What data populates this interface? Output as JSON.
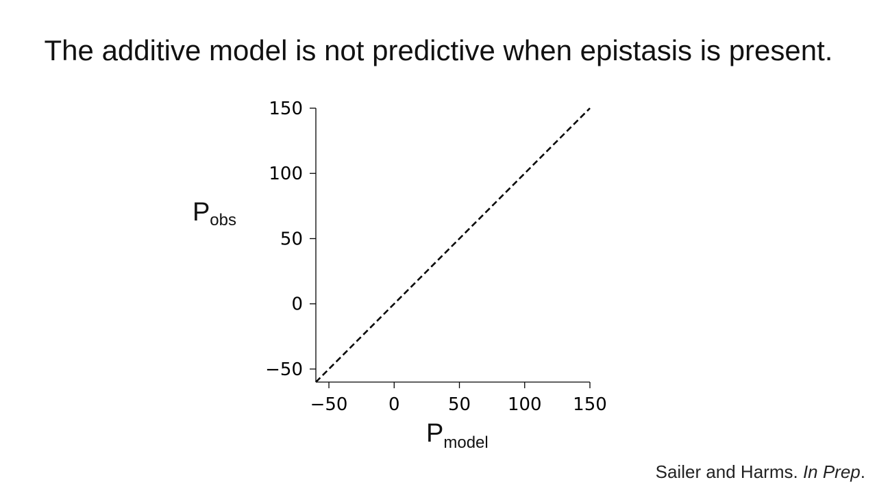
{
  "slide": {
    "title": "The additive model is not predictive when epistasis is present.",
    "citation_authors": "Sailer and Harms. ",
    "citation_status": "In Prep",
    "citation_end": "."
  },
  "chart_data": {
    "type": "line",
    "title": "",
    "xlabel": {
      "base": "P",
      "sub": "model"
    },
    "ylabel": {
      "base": "P",
      "sub": "obs"
    },
    "xlim": [
      -60,
      150
    ],
    "ylim": [
      -60,
      150
    ],
    "xticks": [
      -50,
      0,
      50,
      100,
      150
    ],
    "yticks": [
      -50,
      0,
      50,
      100,
      150
    ],
    "xtick_labels": [
      "−50",
      "0",
      "50",
      "100",
      "150"
    ],
    "ytick_labels": [
      "−50",
      "0",
      "50",
      "100",
      "150"
    ],
    "grid": false,
    "series": [
      {
        "style": "dashed",
        "color": "#000000",
        "x": [
          -60,
          150
        ],
        "y": [
          -60,
          150
        ]
      }
    ]
  }
}
